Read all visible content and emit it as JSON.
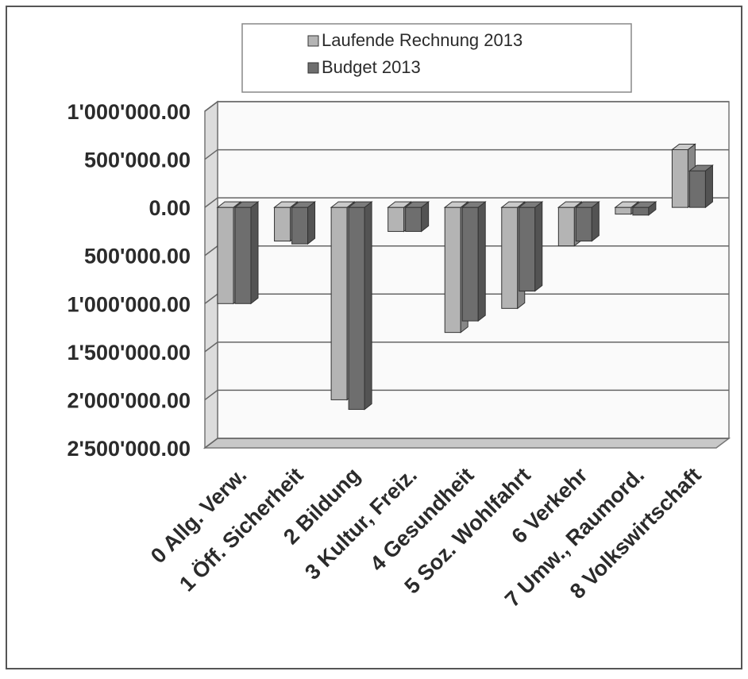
{
  "chart_data": {
    "type": "bar",
    "title": "",
    "xlabel": "",
    "ylabel": "",
    "categories": [
      "0 Allg. Verw.",
      "1 Öff. Sicherheit",
      "2 Bildung",
      "3 Kultur, Freiz.",
      "4 Gesundheit",
      "5 Soz. Wohlfahrt",
      "6 Verkehr",
      "7 Umw., Raumord.",
      "8 Volkswirtschaft"
    ],
    "series": [
      {
        "name": "Laufende Rechnung 2013",
        "color": "#b4b4b4",
        "values": [
          -1000000,
          -350000,
          -2000000,
          -250000,
          -1300000,
          -1050000,
          -400000,
          -70000,
          600000
        ]
      },
      {
        "name": "Budget 2013",
        "color": "#6e6e6e",
        "values": [
          -1000000,
          -380000,
          -2100000,
          -250000,
          -1180000,
          -870000,
          -350000,
          -80000,
          380000
        ]
      }
    ],
    "ylim": [
      -2500000,
      1000000
    ],
    "y_ticks": [
      {
        "value": 1000000,
        "label": "1'000'000.00"
      },
      {
        "value": 500000,
        "label": "500'000.00"
      },
      {
        "value": 0,
        "label": "0.00"
      },
      {
        "value": -500000,
        "label": "500'000.00"
      },
      {
        "value": -1000000,
        "label": "1'000'000.00"
      },
      {
        "value": -1500000,
        "label": "1'500'000.00"
      },
      {
        "value": -2000000,
        "label": "2'000'000.00"
      },
      {
        "value": -2500000,
        "label": "2'500'000.00"
      }
    ],
    "grid": true,
    "legend_position": "top-center",
    "style": "3d-clustered-column"
  }
}
